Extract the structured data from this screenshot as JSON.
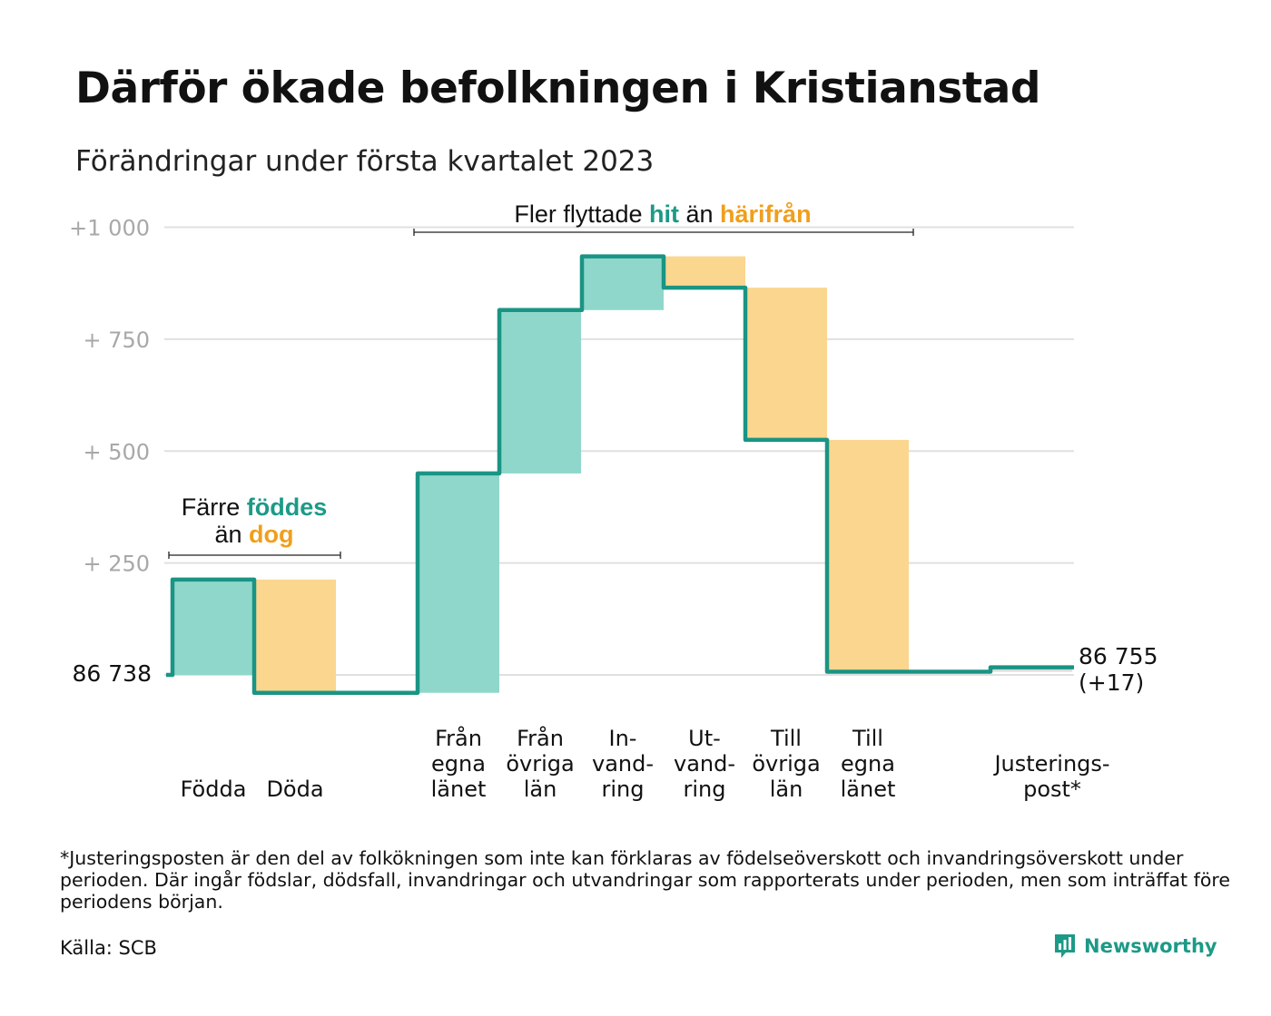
{
  "title": "Därför ökade befolkningen i Kristianstad",
  "subtitle": "Förändringar under första kvartalet 2023",
  "chart_data": {
    "type": "waterfall",
    "start_value": 86738,
    "end_value": 86755,
    "start_label": "86 738",
    "end_label": "86 755",
    "end_change_label": "(+17)",
    "y_ticks": [
      {
        "value": 1000,
        "label": "+1 000"
      },
      {
        "value": 750,
        "label": "+ 750"
      },
      {
        "value": 500,
        "label": "+ 500"
      },
      {
        "value": 250,
        "label": "+ 250"
      }
    ],
    "ylim": [
      -60,
      1060
    ],
    "steps": [
      {
        "key": "fodda",
        "label": [
          "Födda"
        ],
        "change": 213,
        "group": "birth_death"
      },
      {
        "key": "doda",
        "label": [
          "Döda"
        ],
        "change": -253,
        "group": "birth_death"
      },
      {
        "key": "fran_egna",
        "label": [
          "Från",
          "egna",
          "länet"
        ],
        "change": 490,
        "group": "migration"
      },
      {
        "key": "fran_ovriga",
        "label": [
          "Från",
          "övriga",
          "län"
        ],
        "change": 365,
        "group": "migration"
      },
      {
        "key": "invandring",
        "label": [
          "In-",
          "vand-",
          "ring"
        ],
        "change": 120,
        "group": "migration"
      },
      {
        "key": "utvandring",
        "label": [
          "Ut-",
          "vand-",
          "ring"
        ],
        "change": -70,
        "group": "migration"
      },
      {
        "key": "till_ovriga",
        "label": [
          "Till",
          "övriga",
          "län"
        ],
        "change": -340,
        "group": "migration"
      },
      {
        "key": "till_egna",
        "label": [
          "Till",
          "egna",
          "länet"
        ],
        "change": -518,
        "group": "migration"
      },
      {
        "key": "justering",
        "label": [
          "Justerings-",
          "post*"
        ],
        "change": 10,
        "group": "adjustment"
      }
    ],
    "annotations": [
      {
        "key": "birth_death",
        "parts": [
          {
            "text": "Färre ",
            "style": "plain"
          },
          {
            "text": "föddes",
            "style": "positive"
          },
          {
            "text": "än ",
            "style": "plain",
            "newline": true
          },
          {
            "text": "dog",
            "style": "negative"
          }
        ]
      },
      {
        "key": "migration",
        "parts": [
          {
            "text": "Fler flyttade ",
            "style": "plain"
          },
          {
            "text": "hit",
            "style": "positive"
          },
          {
            "text": " än ",
            "style": "plain"
          },
          {
            "text": "härifrån",
            "style": "negative"
          }
        ]
      }
    ],
    "colors": {
      "positive": "#1c9a87",
      "positive_fill": "#8fd7cb",
      "negative": "#ef9f1d",
      "negative_fill": "#fad68f",
      "line": "#1a9484",
      "grid": "#e0e0e0",
      "tick_text": "#a8a8a8",
      "neutral_fill": "#dcdcdc"
    },
    "grid": true
  },
  "footnote": "*Justeringsposten är den del av folkökningen som inte kan förklaras av födelseöverskott och invandringsöverskott under perioden. Där ingår födslar, dödsfall, invandringar och utvandringar som rapporterats under perioden, men som inträffat före periodens början.",
  "source": "Källa: SCB",
  "brand": {
    "name": "Newsworthy",
    "icon": "bar-chart-icon"
  }
}
